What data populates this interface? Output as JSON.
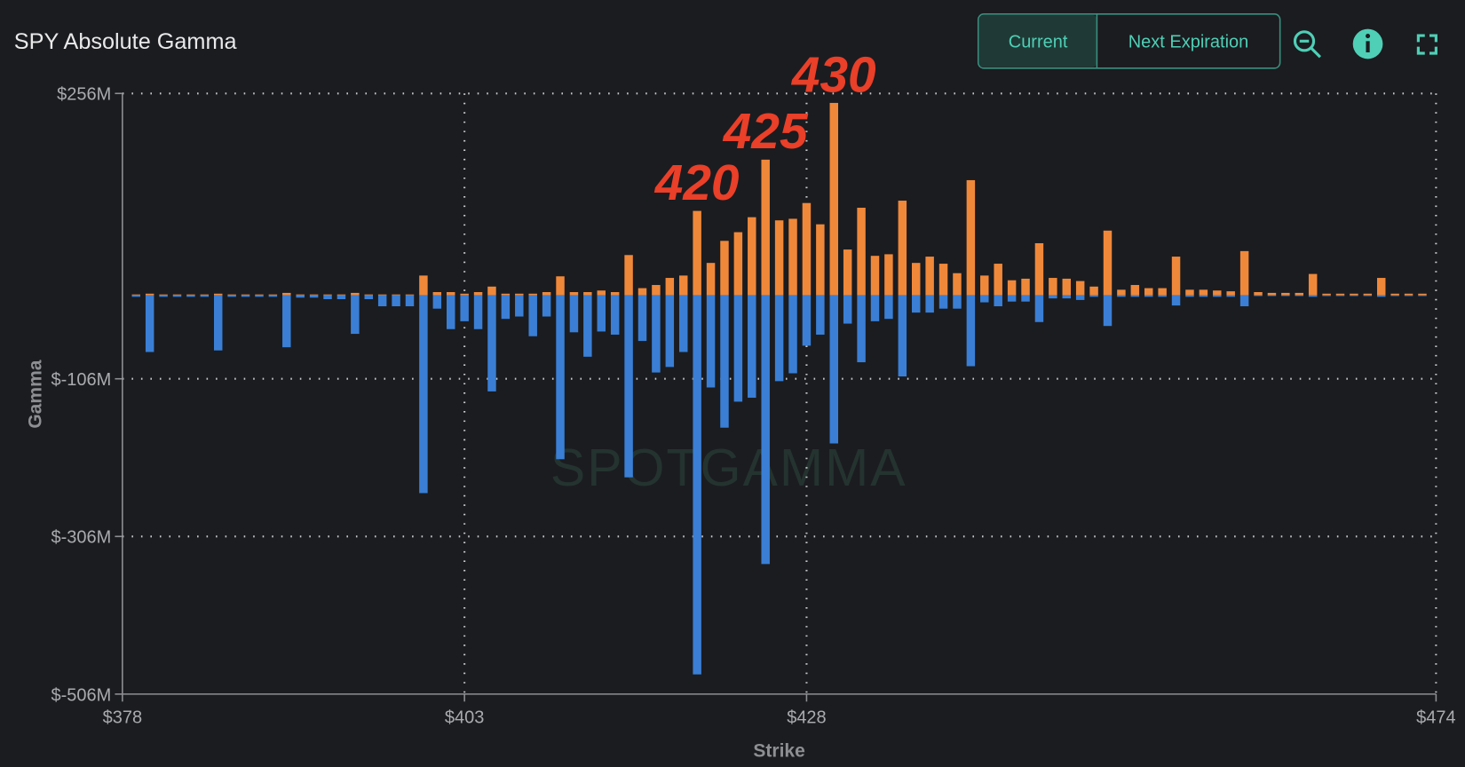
{
  "header": {
    "buttons": [
      "Current",
      "Next Expiration"
    ]
  },
  "watermark": "SPOTGAMMA",
  "chart_data": {
    "type": "bar",
    "title": "SPY Absolute Gamma",
    "x_label": "Strike",
    "y_label": "Gamma",
    "x": [
      379,
      380,
      381,
      382,
      383,
      384,
      385,
      386,
      387,
      388,
      389,
      390,
      391,
      392,
      393,
      394,
      395,
      396,
      397,
      398,
      399,
      400,
      401,
      402,
      403,
      404,
      405,
      406,
      407,
      408,
      409,
      410,
      411,
      412,
      413,
      414,
      415,
      416,
      417,
      418,
      419,
      420,
      421,
      422,
      423,
      424,
      425,
      426,
      427,
      428,
      429,
      430,
      431,
      432,
      433,
      434,
      435,
      436,
      437,
      438,
      439,
      440,
      441,
      442,
      443,
      444,
      445,
      446,
      447,
      448,
      449,
      450,
      451,
      452,
      453,
      454,
      455,
      456,
      457,
      458,
      459,
      460,
      461,
      462,
      463,
      464,
      465,
      466,
      467,
      468,
      469,
      470,
      471,
      472,
      473
    ],
    "series": [
      {
        "color": "#f0883a",
        "values": [
          1,
          2,
          1,
          1,
          1,
          1,
          2,
          1,
          1,
          1,
          1,
          3,
          1,
          1,
          1,
          1,
          3,
          1,
          1,
          1,
          1,
          25,
          4,
          4,
          2,
          4,
          11,
          2,
          2,
          2,
          4,
          24,
          4,
          4,
          6,
          4,
          51,
          9,
          13,
          22,
          25,
          107,
          41,
          69,
          80,
          99,
          172,
          95,
          97,
          117,
          90,
          244,
          58,
          111,
          50,
          52,
          120,
          41,
          49,
          40,
          28,
          146,
          25,
          40,
          19,
          21,
          66,
          22,
          21,
          18,
          11,
          82,
          7,
          13,
          9,
          9,
          49,
          7,
          7,
          6,
          5,
          56,
          4,
          3,
          3,
          3,
          27,
          2,
          2,
          2,
          2,
          22,
          2,
          2,
          2
        ]
      },
      {
        "color": "#3a7fd5",
        "values": [
          -2,
          -72,
          -2,
          -2,
          -2,
          -2,
          -70,
          -2,
          -2,
          -2,
          -2,
          -66,
          -3,
          -3,
          -5,
          -5,
          -49,
          -5,
          -14,
          -14,
          -14,
          -251,
          -17,
          -43,
          -33,
          -43,
          -122,
          -30,
          -27,
          -52,
          -27,
          -208,
          -47,
          -78,
          -46,
          -50,
          -231,
          -58,
          -98,
          -91,
          -72,
          -481,
          -117,
          -168,
          -135,
          -130,
          -341,
          -109,
          -99,
          -64,
          -50,
          -188,
          -36,
          -85,
          -33,
          -30,
          -103,
          -22,
          -22,
          -17,
          -17,
          -90,
          -9,
          -14,
          -8,
          -8,
          -34,
          -4,
          -4,
          -6,
          -2,
          -39,
          -2,
          -2,
          -2,
          -2,
          -13,
          -2,
          -2,
          -2,
          -2,
          -14,
          -1,
          -1,
          -1,
          -1,
          -2,
          -1,
          -1,
          -1,
          -1,
          -2,
          -1,
          -1,
          -1
        ]
      }
    ],
    "xlim": [
      378,
      474
    ],
    "xticks": [
      {
        "value": 378,
        "label": "$378"
      },
      {
        "value": 403,
        "label": "$403"
      },
      {
        "value": 428,
        "label": "$428"
      },
      {
        "value": 474,
        "label": "$474"
      }
    ],
    "ylim": [
      -506,
      256
    ],
    "yticks": [
      {
        "value": -506,
        "label": "$-506M"
      },
      {
        "value": -306,
        "label": "$-306M"
      },
      {
        "value": -106,
        "label": "$-106M"
      },
      {
        "value": 256,
        "label": "$256M"
      }
    ],
    "grid": true,
    "annotations": [
      "420",
      "425",
      "430"
    ]
  }
}
